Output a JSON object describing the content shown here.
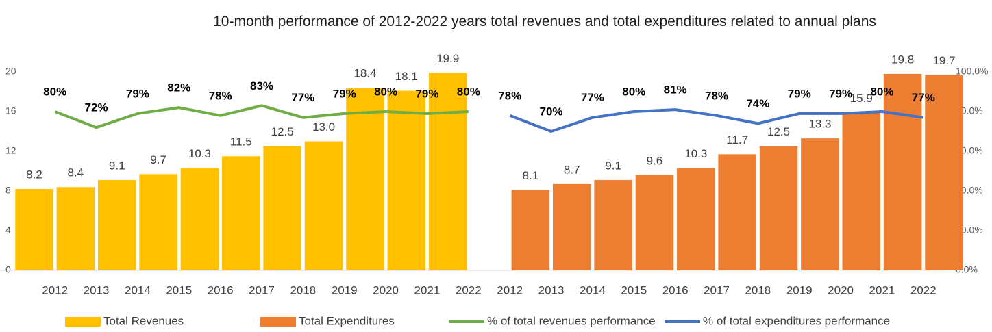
{
  "chart_data": {
    "type": "bar",
    "title": "10-month performance of 2012-2022 years total revenues and total expenditures related to annual plans",
    "categories": [
      "2012",
      "2013",
      "2014",
      "2015",
      "2016",
      "2017",
      "2018",
      "2019",
      "2020",
      "2021",
      "2022",
      "2012",
      "2013",
      "2014",
      "2015",
      "2016",
      "2017",
      "2018",
      "2019",
      "2020",
      "2021",
      "2022"
    ],
    "ylim": [
      0,
      20
    ],
    "yticks": [
      0,
      4,
      8,
      12,
      16,
      20
    ],
    "y2lim": [
      0,
      100
    ],
    "y2ticks": [
      {
        "value": 0,
        "label": "0.0%"
      },
      {
        "value": 20,
        "label": "20.0%"
      },
      {
        "value": 40,
        "label": "40.0%"
      },
      {
        "value": 60,
        "label": "60.0%"
      },
      {
        "value": 80,
        "label": "80.0%"
      },
      {
        "value": 100,
        "label": "100.0%"
      }
    ],
    "series": [
      {
        "name": "Total Revenues",
        "type": "bar",
        "color": "#FFC000",
        "values": [
          8.2,
          8.4,
          9.1,
          9.7,
          10.3,
          11.5,
          12.5,
          13.0,
          18.4,
          18.1,
          19.9,
          null,
          null,
          null,
          null,
          null,
          null,
          null,
          null,
          null,
          null,
          null
        ],
        "value_labels": [
          "8.2",
          "8.4",
          "9.1",
          "9.7",
          "10.3",
          "11.5",
          "12.5",
          "13.0",
          "18.4",
          "18.1",
          "19.9",
          null,
          null,
          null,
          null,
          null,
          null,
          null,
          null,
          null,
          null,
          null
        ]
      },
      {
        "name": "Total Expenditures",
        "type": "bar",
        "color": "#ED7D31",
        "values": [
          null,
          null,
          null,
          null,
          null,
          null,
          null,
          null,
          null,
          null,
          null,
          8.1,
          8.7,
          9.1,
          9.6,
          10.3,
          11.7,
          12.5,
          13.3,
          15.9,
          19.8,
          19.7
        ],
        "value_labels": [
          null,
          null,
          null,
          null,
          null,
          null,
          null,
          null,
          null,
          null,
          null,
          "8.1",
          "8.7",
          "9.1",
          "9.6",
          "10.3",
          "11.7",
          "12.5",
          "13.3",
          "15.9",
          "19.8",
          "19.7"
        ]
      },
      {
        "name": "% of total revenues performance",
        "type": "line",
        "axis": "y2",
        "color": "#70AD47",
        "values": [
          80,
          72,
          79,
          82,
          78,
          83,
          77,
          79,
          80,
          79,
          80,
          null,
          null,
          null,
          null,
          null,
          null,
          null,
          null,
          null,
          null,
          null
        ],
        "value_labels": [
          "80%",
          "72%",
          "79%",
          "82%",
          "78%",
          "83%",
          "77%",
          "79%",
          "80%",
          "79%",
          "80%",
          null,
          null,
          null,
          null,
          null,
          null,
          null,
          null,
          null,
          null,
          null
        ]
      },
      {
        "name": "% of total expenditures performance",
        "type": "line",
        "axis": "y2",
        "color": "#4472C4",
        "values": [
          null,
          null,
          null,
          null,
          null,
          null,
          null,
          null,
          null,
          null,
          null,
          78,
          70,
          77,
          80,
          81,
          78,
          74,
          79,
          79,
          80,
          77
        ],
        "value_labels": [
          null,
          null,
          null,
          null,
          null,
          null,
          null,
          null,
          null,
          null,
          null,
          "78%",
          "70%",
          "77%",
          "80%",
          "81%",
          "78%",
          "74%",
          "79%",
          "79%",
          "80%",
          "77%"
        ]
      }
    ],
    "legend": "bottom"
  }
}
